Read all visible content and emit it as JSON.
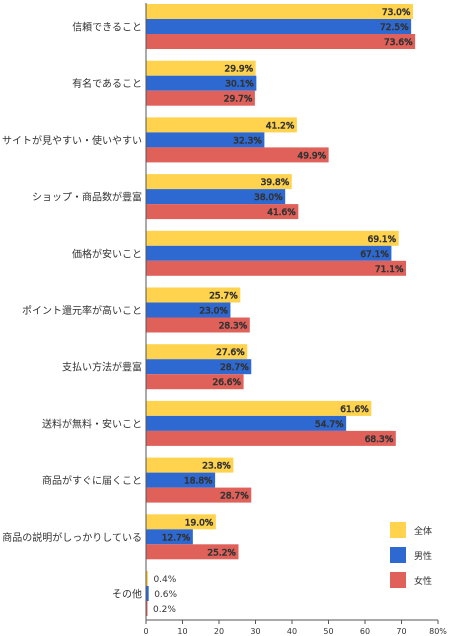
{
  "chart_data": {
    "type": "bar",
    "orientation": "horizontal",
    "categories": [
      "信頼できること",
      "有名であること",
      "サイトが見やすい・使いやすい",
      "ショップ・商品数が豊富",
      "価格が安いこと",
      "ポイント還元率が高いこと",
      "支払い方法が豊富",
      "送料が無料・安いこと",
      "商品がすぐに届くこと",
      "商品の説明がしっかりしている",
      "その他"
    ],
    "series": [
      {
        "name": "全体",
        "color": "#FFD34D",
        "values": [
          73.0,
          29.9,
          41.2,
          39.8,
          69.1,
          25.7,
          27.6,
          61.6,
          23.8,
          19.0,
          0.4
        ]
      },
      {
        "name": "男性",
        "color": "#2E69D2",
        "values": [
          72.5,
          30.1,
          32.3,
          38.0,
          67.1,
          23.0,
          28.7,
          54.7,
          18.8,
          12.7,
          0.6
        ]
      },
      {
        "name": "女性",
        "color": "#E0605A",
        "values": [
          73.6,
          29.7,
          49.9,
          41.6,
          71.1,
          28.3,
          26.6,
          68.3,
          28.7,
          25.2,
          0.2
        ]
      }
    ],
    "value_labels": [
      [
        "73.0%",
        "29.9%",
        "41.2%",
        "39.8%",
        "69.1%",
        "25.7%",
        "27.6%",
        "61.6%",
        "23.8%",
        "19.0%",
        "0.4%"
      ],
      [
        "72.5%",
        "30.1%",
        "32.3%",
        "38.0%",
        "67.1%",
        "23.0%",
        "28.7%",
        "54.7%",
        "18.8%",
        "12.7%",
        "0.6%"
      ],
      [
        "73.6%",
        "29.7%",
        "49.9%",
        "41.6%",
        "71.1%",
        "28.3%",
        "26.6%",
        "68.3%",
        "28.7%",
        "25.2%",
        "0.2%"
      ]
    ],
    "xlim": [
      0,
      80
    ],
    "xticks": [
      "0",
      "10",
      "20",
      "30",
      "40",
      "50",
      "60",
      "70",
      "80%"
    ],
    "grid": false,
    "legend_position": "bottom-right"
  }
}
